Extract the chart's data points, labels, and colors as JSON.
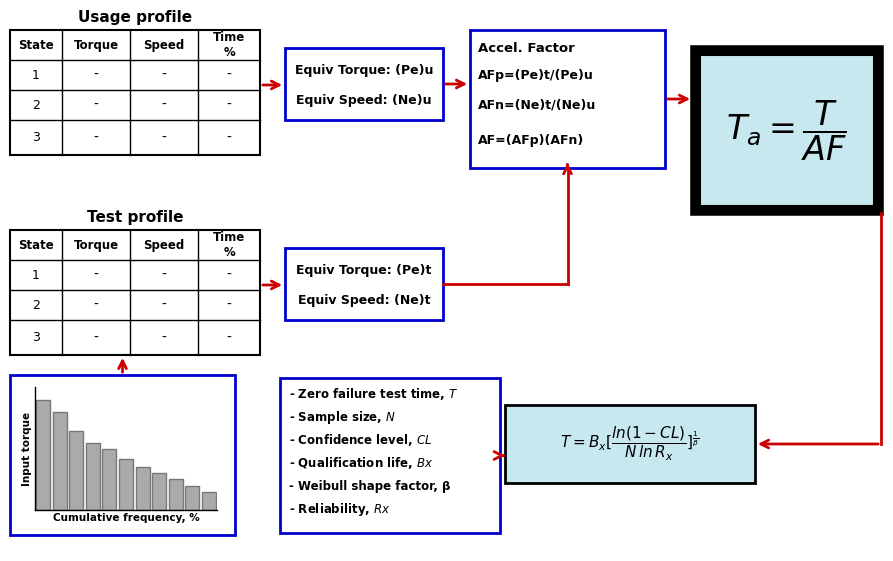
{
  "bg_color": "#ffffff",
  "blue_box_color": "#0000cc",
  "red_color": "#cc0000",
  "light_blue_fill": "#c8e8f0",
  "gray_bar_color": "#aaaaaa",
  "usage_profile_title": "Usage profile",
  "test_profile_title": "Test profile",
  "table_headers": [
    "State",
    "Torque",
    "Speed",
    "Time\n%"
  ],
  "table_rows": [
    "1",
    "2",
    "3"
  ],
  "equiv_box1_lines": [
    "Equiv Torque: (Pe)u",
    "Equiv Speed: (Ne)u"
  ],
  "equiv_box2_lines": [
    "Equiv Torque: (Pe)t",
    "Equiv Speed: (Ne)t"
  ],
  "accel_box_lines": [
    "Accel. Factor",
    "AFp=(Pe)t/(Pe)u",
    "AFn=(Ne)t/(Ne)u",
    "AF=(AFp)(AFn)"
  ],
  "input_text_lines": [
    "- Zero failure test time, $T$",
    "- Sample size, $N$",
    "- Confidence level, $CL$",
    "- Qualification life, $Bx$",
    "- Weibull shape factor, β",
    "- Reliability, $Rx$"
  ],
  "hist_xlabel": "Cumulative frequency, %",
  "hist_ylabel": "Input torque",
  "hist_bars": [
    9,
    8,
    6.5,
    5.5,
    5,
    4.2,
    3.5,
    3,
    2.5,
    2,
    1.5
  ]
}
